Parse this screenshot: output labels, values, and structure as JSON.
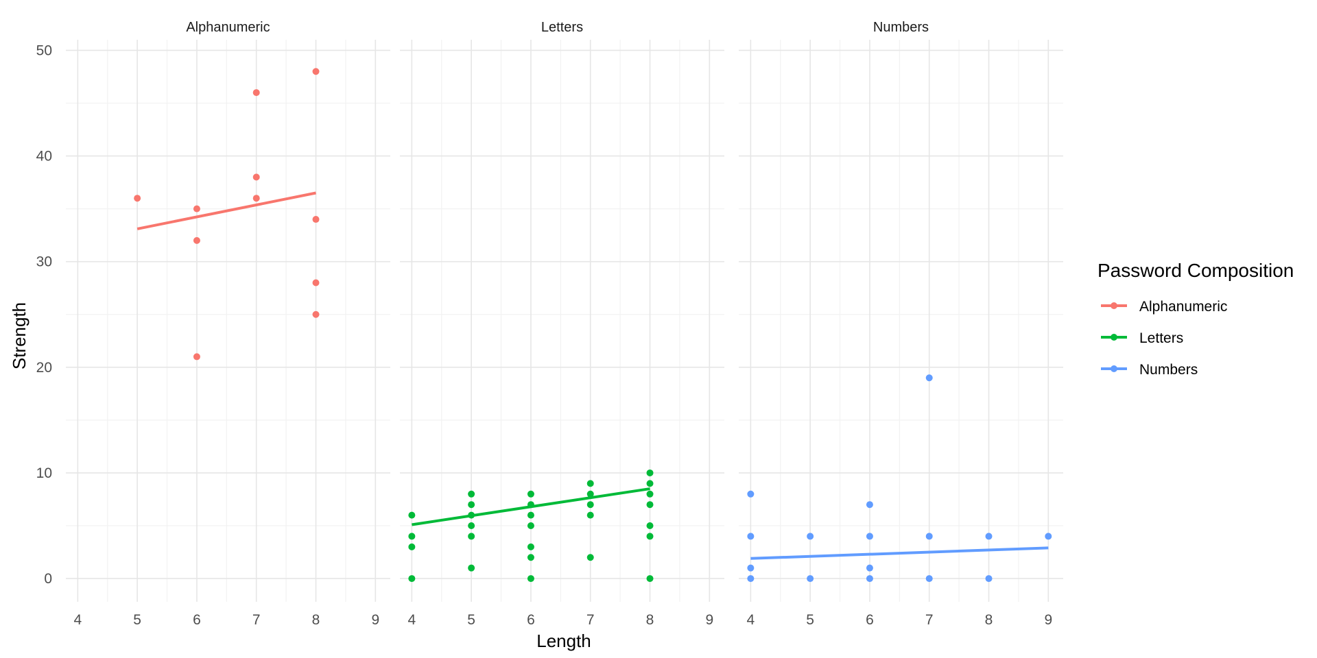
{
  "chart_data": {
    "type": "scatter",
    "xlabel": "Length",
    "ylabel": "Strength",
    "xlim": [
      3.8,
      9.25
    ],
    "ylim": [
      -2.2,
      51
    ],
    "x_ticks": [
      4,
      5,
      6,
      7,
      8,
      9
    ],
    "y_ticks": [
      0,
      10,
      20,
      30,
      40,
      50
    ],
    "grid": true,
    "legend": {
      "title": "Password Composition",
      "position": "right",
      "entries": [
        "Alphanumeric",
        "Letters",
        "Numbers"
      ]
    },
    "panels": [
      {
        "name": "Alphanumeric",
        "color": "#F8766D",
        "points": [
          [
            5,
            36
          ],
          [
            6,
            35
          ],
          [
            6,
            32
          ],
          [
            6,
            21
          ],
          [
            7,
            46
          ],
          [
            7,
            38
          ],
          [
            7,
            36
          ],
          [
            8,
            48
          ],
          [
            8,
            34
          ],
          [
            8,
            28
          ],
          [
            8,
            25
          ]
        ],
        "fit": {
          "x": [
            5,
            8
          ],
          "y": [
            33.1,
            36.5
          ]
        }
      },
      {
        "name": "Letters",
        "color": "#00BA38",
        "points": [
          [
            4,
            6
          ],
          [
            4,
            4
          ],
          [
            4,
            3
          ],
          [
            4,
            0
          ],
          [
            5,
            8
          ],
          [
            5,
            7
          ],
          [
            5,
            6
          ],
          [
            5,
            5
          ],
          [
            5,
            4
          ],
          [
            5,
            1
          ],
          [
            6,
            8
          ],
          [
            6,
            7
          ],
          [
            6,
            6
          ],
          [
            6,
            5
          ],
          [
            6,
            3
          ],
          [
            6,
            2
          ],
          [
            6,
            0
          ],
          [
            7,
            9
          ],
          [
            7,
            8
          ],
          [
            7,
            7
          ],
          [
            7,
            6
          ],
          [
            7,
            2
          ],
          [
            8,
            10
          ],
          [
            8,
            9
          ],
          [
            8,
            8
          ],
          [
            8,
            7
          ],
          [
            8,
            5
          ],
          [
            8,
            4
          ],
          [
            8,
            0
          ]
        ],
        "fit": {
          "x": [
            4,
            8
          ],
          "y": [
            5.1,
            8.5
          ]
        }
      },
      {
        "name": "Numbers",
        "color": "#619CFF",
        "points": [
          [
            4,
            8
          ],
          [
            4,
            4
          ],
          [
            4,
            1
          ],
          [
            4,
            0
          ],
          [
            5,
            4
          ],
          [
            5,
            0
          ],
          [
            6,
            7
          ],
          [
            6,
            4
          ],
          [
            6,
            1
          ],
          [
            6,
            0
          ],
          [
            7,
            19
          ],
          [
            7,
            4
          ],
          [
            7,
            0
          ],
          [
            8,
            4
          ],
          [
            8,
            0
          ],
          [
            9,
            4
          ]
        ],
        "fit": {
          "x": [
            4,
            9
          ],
          "y": [
            1.9,
            2.9
          ]
        }
      }
    ]
  }
}
